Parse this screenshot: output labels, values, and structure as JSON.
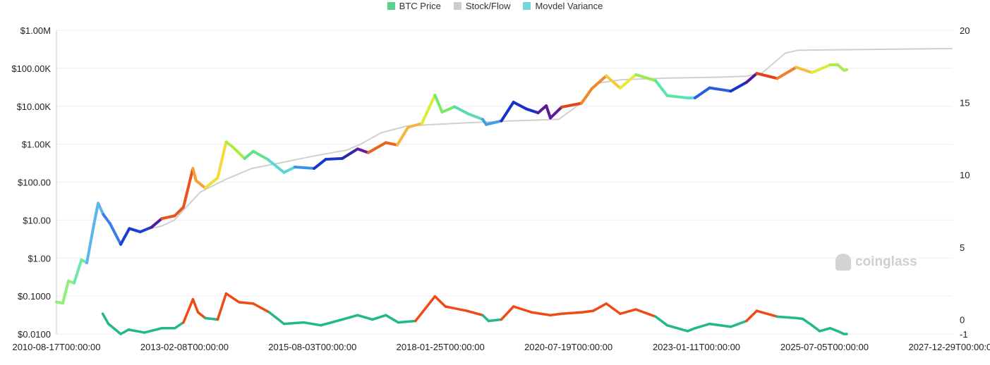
{
  "legend": [
    {
      "label": "BTC Price",
      "color": "#5cd08f"
    },
    {
      "label": "Stock/Flow",
      "color": "#cccccc"
    },
    {
      "label": "Movdel Variance",
      "color": "#6fd6da"
    }
  ],
  "watermark": "coinglass",
  "chart_data": {
    "type": "line",
    "x_ticks": [
      "2010-08-17T00:00:00",
      "2013-02-08T00:00:00",
      "2015-08-03T00:00:00",
      "2018-01-25T00:00:00",
      "2020-07-19T00:00:00",
      "2023-01-11T00:00:00",
      "2025-07-05T00:00:00",
      "2027-12-29T00:00:00"
    ],
    "xlim": [
      "2010-08-17",
      "2027-12-29"
    ],
    "y_left": {
      "scale": "log",
      "ylim": [
        0.01,
        1000000
      ],
      "ticks": [
        {
          "v": 1000000,
          "label": "$1.00M"
        },
        {
          "v": 100000,
          "label": "$100.00K"
        },
        {
          "v": 10000,
          "label": "$10.00K"
        },
        {
          "v": 1000,
          "label": "$1.00K"
        },
        {
          "v": 100,
          "label": "$100.00"
        },
        {
          "v": 10,
          "label": "$10.00"
        },
        {
          "v": 1,
          "label": "$1.00"
        },
        {
          "v": 0.1,
          "label": "$0.1000"
        },
        {
          "v": 0.01,
          "label": "$0.0100"
        }
      ]
    },
    "y_right": {
      "scale": "linear",
      "ylim": [
        -1,
        20
      ],
      "ticks": [
        20,
        15,
        10,
        5,
        0,
        -1
      ]
    },
    "grid": true,
    "legend_position": "top",
    "series": [
      {
        "name": "BTC Price",
        "axis": "left",
        "points": [
          [
            "2010-08-17",
            0.07
          ],
          [
            "2010-10-01",
            0.065
          ],
          [
            "2010-11-10",
            0.25
          ],
          [
            "2010-12-20",
            0.22
          ],
          [
            "2011-02-10",
            0.9
          ],
          [
            "2011-03-20",
            0.75
          ],
          [
            "2011-05-10",
            8
          ],
          [
            "2011-06-08",
            28
          ],
          [
            "2011-07-15",
            14
          ],
          [
            "2011-09-01",
            8
          ],
          [
            "2011-11-15",
            2.3
          ],
          [
            "2012-01-15",
            6
          ],
          [
            "2012-04-01",
            4.9
          ],
          [
            "2012-06-20",
            6.5
          ],
          [
            "2012-09-01",
            11
          ],
          [
            "2012-12-01",
            13
          ],
          [
            "2013-02-01",
            22
          ],
          [
            "2013-04-09",
            230
          ],
          [
            "2013-05-01",
            110
          ],
          [
            "2013-07-05",
            70
          ],
          [
            "2013-10-01",
            130
          ],
          [
            "2013-11-30",
            1150
          ],
          [
            "2014-01-15",
            850
          ],
          [
            "2014-04-10",
            420
          ],
          [
            "2014-06-10",
            650
          ],
          [
            "2014-09-20",
            400
          ],
          [
            "2015-01-14",
            180
          ],
          [
            "2015-04-01",
            250
          ],
          [
            "2015-08-15",
            230
          ],
          [
            "2015-11-05",
            400
          ],
          [
            "2016-03-01",
            420
          ],
          [
            "2016-06-18",
            750
          ],
          [
            "2016-09-01",
            600
          ],
          [
            "2017-01-04",
            1100
          ],
          [
            "2017-03-25",
            950
          ],
          [
            "2017-06-10",
            2800
          ],
          [
            "2017-09-15",
            3500
          ],
          [
            "2017-12-17",
            19500
          ],
          [
            "2018-02-06",
            7000
          ],
          [
            "2018-05-05",
            9700
          ],
          [
            "2018-08-10",
            6300
          ],
          [
            "2018-11-20",
            4500
          ],
          [
            "2018-12-15",
            3300
          ],
          [
            "2019-04-01",
            4100
          ],
          [
            "2019-06-26",
            12800
          ],
          [
            "2019-09-25",
            8500
          ],
          [
            "2019-12-17",
            6700
          ],
          [
            "2020-02-13",
            10300
          ],
          [
            "2020-03-13",
            4900
          ],
          [
            "2020-06-01",
            9500
          ],
          [
            "2020-10-20",
            12000
          ],
          [
            "2020-12-31",
            29000
          ],
          [
            "2021-04-13",
            63000
          ],
          [
            "2021-07-20",
            30000
          ],
          [
            "2021-11-09",
            68000
          ],
          [
            "2022-03-28",
            47000
          ],
          [
            "2022-06-18",
            19000
          ],
          [
            "2022-11-10",
            16500
          ],
          [
            "2023-01-01",
            16600
          ],
          [
            "2023-04-14",
            30500
          ],
          [
            "2023-09-11",
            25000
          ],
          [
            "2023-12-31",
            42500
          ],
          [
            "2024-03-13",
            73000
          ],
          [
            "2024-08-05",
            54000
          ],
          [
            "2024-12-17",
            106000
          ],
          [
            "2025-04-08",
            77000
          ],
          [
            "2025-08-14",
            123000
          ],
          [
            "2025-10-06",
            124000
          ],
          [
            "2025-11-20",
            88000
          ],
          [
            "2025-12-10",
            92000
          ]
        ]
      },
      {
        "name": "Stock/Flow",
        "axis": "left",
        "points": [
          [
            "2012-05-01",
            5.5
          ],
          [
            "2012-09-01",
            7
          ],
          [
            "2012-11-28",
            10
          ],
          [
            "2013-06-01",
            55
          ],
          [
            "2013-12-01",
            120
          ],
          [
            "2014-06-01",
            230
          ],
          [
            "2015-01-01",
            330
          ],
          [
            "2015-08-01",
            480
          ],
          [
            "2016-04-01",
            700
          ],
          [
            "2016-07-09",
            1000
          ],
          [
            "2016-12-01",
            2000
          ],
          [
            "2017-06-01",
            3000
          ],
          [
            "2017-12-01",
            3300
          ],
          [
            "2018-09-01",
            3700
          ],
          [
            "2019-06-01",
            4100
          ],
          [
            "2020-05-11",
            4500
          ],
          [
            "2020-10-01",
            11000
          ],
          [
            "2021-02-01",
            40000
          ],
          [
            "2021-08-01",
            50000
          ],
          [
            "2022-06-01",
            55000
          ],
          [
            "2023-06-01",
            58000
          ],
          [
            "2024-01-01",
            62000
          ],
          [
            "2024-04-20",
            75000
          ],
          [
            "2024-10-01",
            250000
          ],
          [
            "2025-01-01",
            300000
          ],
          [
            "2027-12-29",
            330000
          ]
        ]
      },
      {
        "name": "Movdel Variance",
        "axis": "right",
        "points": [
          [
            "2011-07-10",
            0.4
          ],
          [
            "2011-08-20",
            -0.3
          ],
          [
            "2011-11-15",
            -1.2
          ],
          [
            "2012-01-10",
            -0.7
          ],
          [
            "2012-05-01",
            -0.9
          ],
          [
            "2012-09-01",
            -0.6
          ],
          [
            "2012-12-01",
            -0.6
          ],
          [
            "2013-02-01",
            -0.2
          ],
          [
            "2013-04-09",
            1.4
          ],
          [
            "2013-05-15",
            0.5
          ],
          [
            "2013-07-05",
            0.1
          ],
          [
            "2013-10-01",
            0
          ],
          [
            "2013-11-30",
            1.8
          ],
          [
            "2014-03-01",
            1.2
          ],
          [
            "2014-06-10",
            1.1
          ],
          [
            "2014-10-01",
            0.5
          ],
          [
            "2015-01-14",
            -0.3
          ],
          [
            "2015-06-01",
            -0.2
          ],
          [
            "2015-10-01",
            -0.4
          ],
          [
            "2016-03-01",
            0
          ],
          [
            "2016-06-18",
            0.3
          ],
          [
            "2016-10-01",
            0
          ],
          [
            "2017-01-04",
            0.3
          ],
          [
            "2017-04-01",
            -0.2
          ],
          [
            "2017-08-01",
            -0.1
          ],
          [
            "2017-12-17",
            1.6
          ],
          [
            "2018-03-01",
            0.9
          ],
          [
            "2018-08-01",
            0.6
          ],
          [
            "2018-11-20",
            0.3
          ],
          [
            "2019-01-01",
            -0.1
          ],
          [
            "2019-04-01",
            0
          ],
          [
            "2019-06-26",
            0.9
          ],
          [
            "2019-11-01",
            0.5
          ],
          [
            "2020-03-13",
            0.3
          ],
          [
            "2020-06-01",
            0.4
          ],
          [
            "2020-10-20",
            0.5
          ],
          [
            "2021-01-10",
            0.6
          ],
          [
            "2021-04-13",
            1.1
          ],
          [
            "2021-07-20",
            0.4
          ],
          [
            "2021-11-09",
            0.7
          ],
          [
            "2022-03-28",
            0.2
          ],
          [
            "2022-06-18",
            -0.4
          ],
          [
            "2022-11-10",
            -0.8
          ],
          [
            "2023-01-01",
            -0.6
          ],
          [
            "2023-04-14",
            -0.3
          ],
          [
            "2023-09-11",
            -0.5
          ],
          [
            "2023-12-31",
            -0.1
          ],
          [
            "2024-03-13",
            0.6
          ],
          [
            "2024-08-05",
            0.2
          ],
          [
            "2024-12-17",
            0.1
          ],
          [
            "2025-02-01",
            0.05
          ],
          [
            "2025-04-08",
            -0.4
          ],
          [
            "2025-06-01",
            -0.8
          ],
          [
            "2025-08-14",
            -0.6
          ],
          [
            "2025-10-06",
            -0.8
          ],
          [
            "2025-11-20",
            -1.1
          ],
          [
            "2025-12-10",
            -1
          ]
        ]
      }
    ],
    "price_color_segments": [
      [
        "2010-08-17",
        "#8ef07a"
      ],
      [
        "2010-12-01",
        "#6fe8a9"
      ],
      [
        "2011-03-01",
        "#5ab6ea"
      ],
      [
        "2011-06-15",
        "#3d7be6"
      ],
      [
        "2011-09-15",
        "#1b3fd0"
      ],
      [
        "2012-06-01",
        "#4a20a0"
      ],
      [
        "2012-09-01",
        "#e8541c"
      ],
      [
        "2013-02-15",
        "#f5a030"
      ],
      [
        "2013-06-01",
        "#f2dc3a"
      ],
      [
        "2013-10-15",
        "#a8ee40"
      ],
      [
        "2014-03-01",
        "#66e28a"
      ],
      [
        "2014-09-01",
        "#5ad8cf"
      ],
      [
        "2015-03-01",
        "#3f8ee8"
      ],
      [
        "2015-08-01",
        "#1836c8"
      ],
      [
        "2016-02-01",
        "#2a2aa8"
      ],
      [
        "2016-05-15",
        "#6a1a98"
      ],
      [
        "2016-07-15",
        "#e8641c"
      ],
      [
        "2017-01-20",
        "#f5b640"
      ],
      [
        "2017-07-01",
        "#d8ec3a"
      ],
      [
        "2017-11-15",
        "#7ae66a"
      ],
      [
        "2018-04-01",
        "#5ad8b6"
      ],
      [
        "2018-10-01",
        "#3f9ee8"
      ],
      [
        "2019-03-01",
        "#1832c8"
      ],
      [
        "2019-11-01",
        "#5a1a9a"
      ],
      [
        "2020-03-20",
        "#e0441c"
      ],
      [
        "2020-07-01",
        "#f08a28"
      ],
      [
        "2021-01-15",
        "#f5c83a"
      ],
      [
        "2021-05-01",
        "#e8ea3a"
      ],
      [
        "2021-09-01",
        "#9aea50"
      ],
      [
        "2022-03-15",
        "#5ce6a6"
      ],
      [
        "2022-07-01",
        "#5ad8d6"
      ],
      [
        "2022-12-15",
        "#2a5ee0"
      ],
      [
        "2023-06-01",
        "#1832c8"
      ],
      [
        "2023-11-20",
        "#4a1a9a"
      ],
      [
        "2024-02-01",
        "#e8401c"
      ],
      [
        "2024-07-01",
        "#f08030"
      ],
      [
        "2024-11-01",
        "#f5c040"
      ],
      [
        "2025-03-01",
        "#e0ea3a"
      ],
      [
        "2025-08-01",
        "#a8ec50"
      ]
    ],
    "variance_colors": {
      "positive": "#f04a14",
      "negative": "#22b88a"
    }
  }
}
